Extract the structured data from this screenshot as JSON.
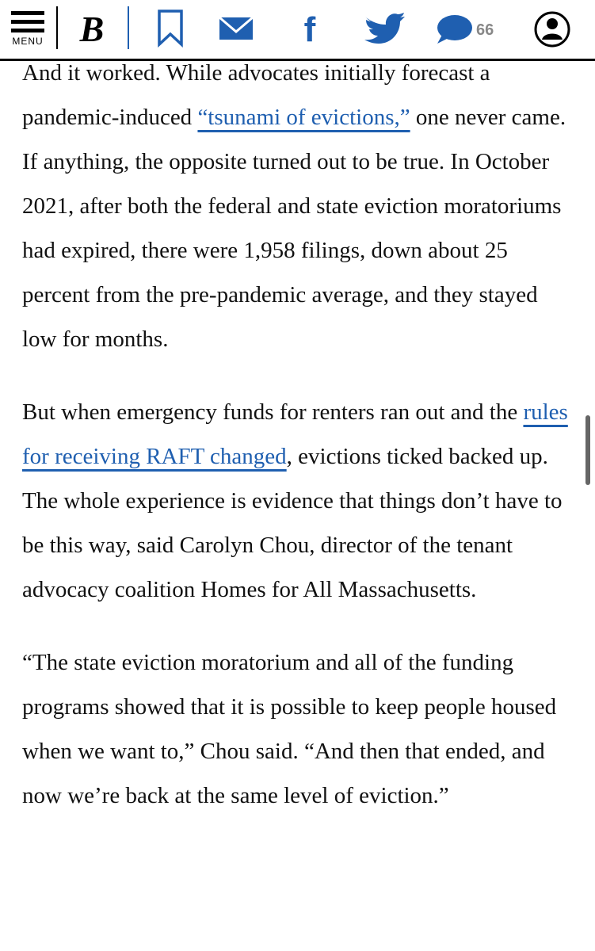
{
  "header": {
    "menu_label": "MENU",
    "logo": "B",
    "comment_count": 66
  },
  "article": {
    "paragraphs": [
      {
        "segments": [
          {
            "text": "And it worked. While advocates initially forecast a pandemic-induced "
          },
          {
            "text": "“tsunami of evictions,”",
            "link": true
          },
          {
            "text": " one never came. If anything, the opposite turned out to be true. In October 2021, after both the federal and state eviction moratoriums had expired, there were 1,958 filings, down about 25 percent from the pre-pandemic average, and they stayed low for months."
          }
        ]
      },
      {
        "segments": [
          {
            "text": "But when emergency funds for renters ran out and the "
          },
          {
            "text": "rules for receiving RAFT changed",
            "link": true
          },
          {
            "text": ", evictions ticked backed up. The whole experience is evidence that things don’t have to be this way, said Carolyn Chou, director of the tenant advocacy coalition Homes for All Massachusetts."
          }
        ]
      },
      {
        "segments": [
          {
            "text": "“The state eviction moratorium and all of the funding programs showed that it is possible to keep people housed when we want to,” Chou said. “And then that ended, and now we’re back at the same level of eviction.”"
          }
        ]
      }
    ]
  }
}
